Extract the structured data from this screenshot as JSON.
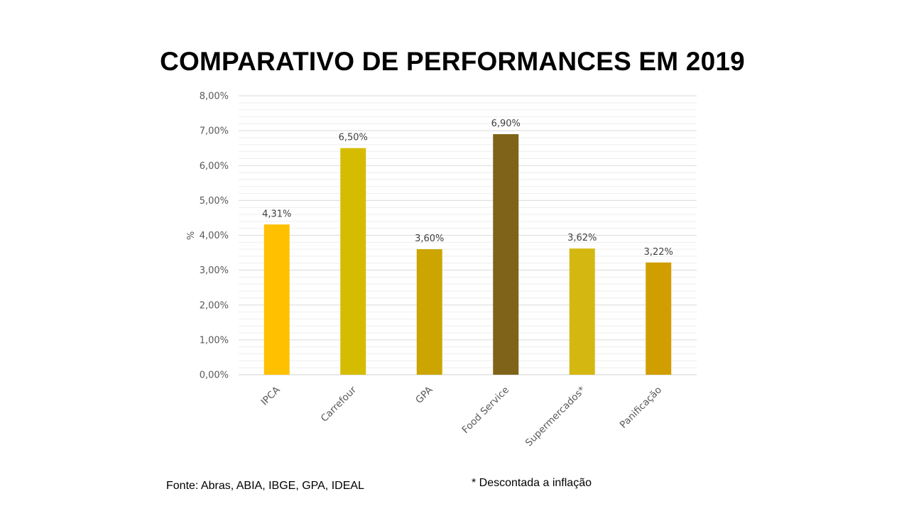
{
  "slide": {
    "title": "COMPARATIVO DE PERFORMANCES EM 2019",
    "source": "Fonte: Abras, ABIA, IBGE,  GPA, IDEAL",
    "footnote": "* Descontada a inflação"
  },
  "chart_data": {
    "type": "bar",
    "title": "COMPARATIVO DE PERFORMANCES EM 2019",
    "xlabel": "",
    "ylabel": "%",
    "ylim": [
      0,
      8
    ],
    "yticks": [
      0,
      1,
      2,
      3,
      4,
      5,
      6,
      7,
      8
    ],
    "ytick_labels": [
      "0,00%",
      "1,00%",
      "2,00%",
      "3,00%",
      "4,00%",
      "5,00%",
      "6,00%",
      "7,00%",
      "8,00%"
    ],
    "grid": true,
    "categories": [
      "IPCA",
      "Carrefour",
      "GPA",
      "Food Service",
      "Supermercados*",
      "Panificação"
    ],
    "values": [
      4.31,
      6.5,
      3.6,
      6.9,
      3.62,
      3.22
    ],
    "data_labels": [
      "4,31%",
      "6,50%",
      "3,60%",
      "6,90%",
      "3,62%",
      "3,22%"
    ],
    "colors": [
      "#FFC000",
      "#D6BC00",
      "#CCA500",
      "#7F6318",
      "#D4B811",
      "#D19E00"
    ]
  }
}
